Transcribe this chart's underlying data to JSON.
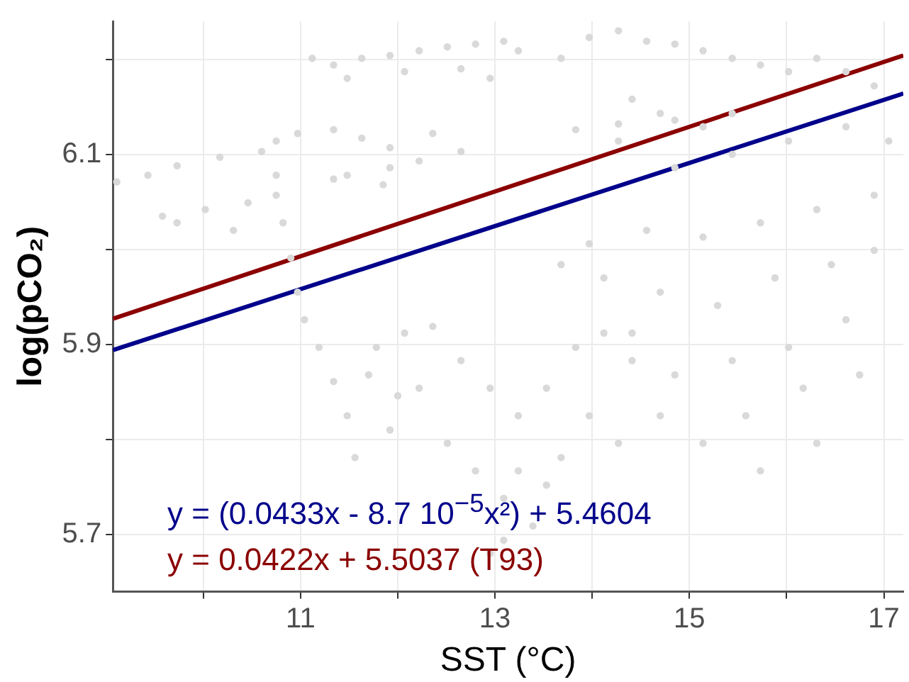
{
  "chart_data": {
    "type": "scatter",
    "xlabel": "SST (°C)",
    "ylabel": "log(pCO₂)",
    "xlim": [
      9.07,
      17.2
    ],
    "ylim": [
      5.64,
      6.24
    ],
    "xticks": [
      {
        "value": 10,
        "label": null
      },
      11,
      {
        "value": 12,
        "label": null
      },
      13,
      {
        "value": 14,
        "label": null
      },
      15,
      {
        "value": 16,
        "label": null
      },
      17
    ],
    "yticks": [
      5.7,
      {
        "value": 5.8,
        "label": null
      },
      5.9,
      {
        "value": 6.0,
        "label": null
      },
      6.1,
      {
        "value": 6.2,
        "label": null
      }
    ],
    "grid": true,
    "legend": false,
    "annotations": [
      "y = (0.0433x - 8.7 10$^{−5}$x²) + 5.4604",
      "y = 0.0422x + 5.5037 (T93)"
    ],
    "series": [
      {
        "color": "#d9d9d9",
        "marker": "circle",
        "x": [
          11.12,
          11.34,
          11.63,
          11.92,
          12.22,
          12.51,
          12.8,
          13.09,
          11.48,
          12.07,
          12.65,
          12.95,
          13.24,
          13.68,
          13.97,
          14.27,
          14.56,
          14.85,
          15.14,
          15.44,
          15.73,
          16.02,
          16.31,
          16.61,
          16.9,
          14.41,
          14.7,
          15.14,
          14.27,
          14.85,
          15.44,
          16.02,
          16.61,
          17.05,
          16.9,
          16.31,
          15.73,
          15.14,
          14.56,
          13.97,
          13.68,
          14.12,
          14.7,
          15.29,
          15.88,
          16.46,
          16.9,
          16.61,
          16.02,
          15.44,
          14.85,
          14.41,
          14.7,
          15.58,
          16.17,
          16.75,
          16.31,
          15.73,
          15.14,
          13.83,
          14.27,
          14.85,
          15.44,
          9.11,
          9.43,
          9.73,
          10.17,
          10.6,
          10.75,
          10.97,
          11.34,
          11.63,
          11.92,
          10.75,
          11.48,
          11.92,
          12.22,
          12.65,
          12.36,
          11.85,
          11.34,
          9.58,
          10.02,
          10.46,
          10.75,
          10.31,
          9.73,
          10.82,
          10.9,
          10.97,
          11.04,
          11.19,
          11.34,
          11.48,
          11.56,
          11.78,
          12.07,
          12.36,
          12.65,
          12.95,
          13.24,
          13.53,
          13.83,
          14.12,
          14.41,
          12.22,
          11.92,
          12.51,
          12.8,
          13.09,
          13.39,
          13.24,
          13.68,
          13.97,
          14.27,
          12.95,
          13.09,
          13.53,
          11.7,
          12.0
        ],
        "values": [
          6.201,
          6.194,
          6.201,
          6.204,
          6.209,
          6.213,
          6.216,
          6.219,
          6.18,
          6.187,
          6.19,
          6.18,
          6.209,
          6.201,
          6.223,
          6.23,
          6.219,
          6.216,
          6.209,
          6.201,
          6.194,
          6.187,
          6.201,
          6.187,
          6.172,
          6.158,
          6.143,
          6.129,
          6.114,
          6.086,
          6.1,
          6.114,
          6.129,
          6.114,
          6.057,
          6.042,
          6.028,
          6.013,
          6.02,
          6.006,
          5.984,
          5.97,
          5.955,
          5.941,
          5.97,
          5.984,
          5.999,
          5.926,
          5.897,
          5.883,
          5.868,
          5.912,
          5.825,
          5.825,
          5.854,
          5.868,
          5.796,
          5.767,
          5.796,
          6.126,
          6.132,
          6.136,
          6.143,
          6.071,
          6.078,
          6.088,
          6.097,
          6.103,
          6.114,
          6.122,
          6.126,
          6.117,
          6.107,
          6.078,
          6.078,
          6.086,
          6.093,
          6.103,
          6.122,
          6.068,
          6.074,
          6.035,
          6.042,
          6.049,
          6.057,
          6.02,
          6.028,
          6.028,
          5.991,
          5.955,
          5.926,
          5.897,
          5.861,
          5.825,
          5.781,
          5.897,
          5.912,
          5.919,
          5.883,
          5.854,
          5.825,
          5.854,
          5.897,
          5.912,
          5.883,
          5.854,
          5.81,
          5.796,
          5.767,
          5.738,
          5.709,
          5.767,
          5.781,
          5.825,
          5.796,
          5.68,
          5.694,
          5.752,
          5.868,
          5.846
        ]
      },
      {
        "type": "line",
        "color": "#00008b",
        "marker": "none",
        "x": [
          9.07,
          17.2
        ],
        "values": [
          5.894,
          6.164
        ]
      },
      {
        "type": "line",
        "color": "#8b0000",
        "marker": "none",
        "x": [
          9.07,
          17.2
        ],
        "values": [
          5.927,
          6.204
        ]
      }
    ]
  }
}
